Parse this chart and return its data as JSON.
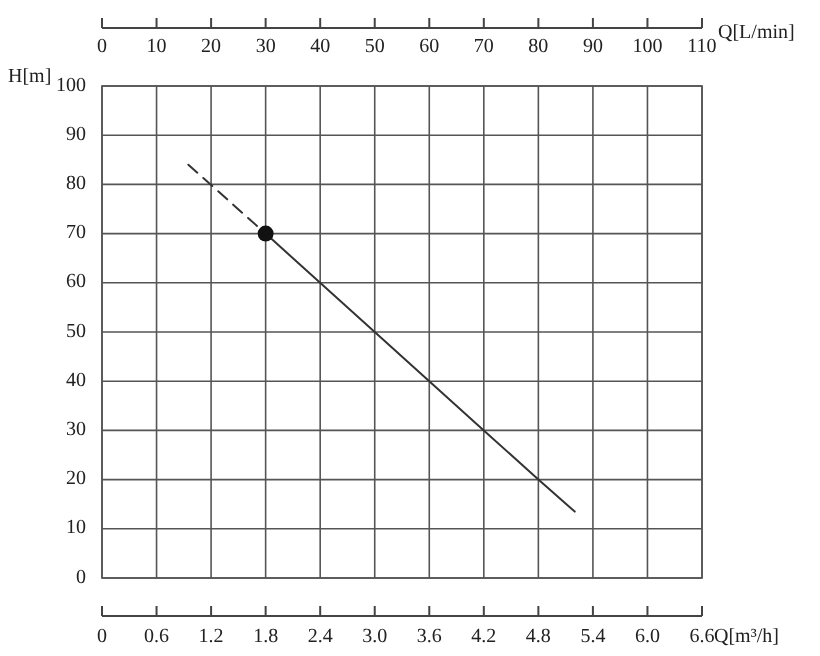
{
  "chart_data": {
    "type": "line",
    "xlabel": "Q[m³/h]",
    "ylabel": "H[m]",
    "x2label": "Q[L/min]",
    "xlim": [
      0,
      6.6
    ],
    "xticks": [
      0,
      0.6,
      1.2,
      1.8,
      2.4,
      {
        "value": 3.0,
        "label": "3.0"
      },
      3.6,
      4.2,
      4.8,
      5.4,
      {
        "value": 6.0,
        "label": "6.0"
      },
      6.6
    ],
    "x2lim": [
      0,
      110
    ],
    "x2ticks": [
      0,
      10,
      20,
      30,
      40,
      50,
      60,
      70,
      80,
      90,
      100,
      110
    ],
    "ylim": [
      0,
      100
    ],
    "yticks": [
      0,
      10,
      20,
      30,
      40,
      50,
      60,
      70,
      80,
      90,
      100
    ],
    "grid": true,
    "series": [
      {
        "color": "#333333",
        "line_style": "dashed",
        "marker": "none",
        "x": [
          0.95,
          1.8
        ],
        "values": [
          84,
          70
        ]
      },
      {
        "color": "#333333",
        "line_style": "solid",
        "marker": "none",
        "x": [
          1.8,
          3.0,
          3.6,
          4.2,
          4.8,
          5.2
        ],
        "values": [
          70,
          50,
          40,
          30,
          20,
          13.5
        ]
      },
      {
        "type": "scatter",
        "color": "#111111",
        "marker": "circle",
        "x": [
          1.8
        ],
        "values": [
          70
        ]
      }
    ]
  }
}
